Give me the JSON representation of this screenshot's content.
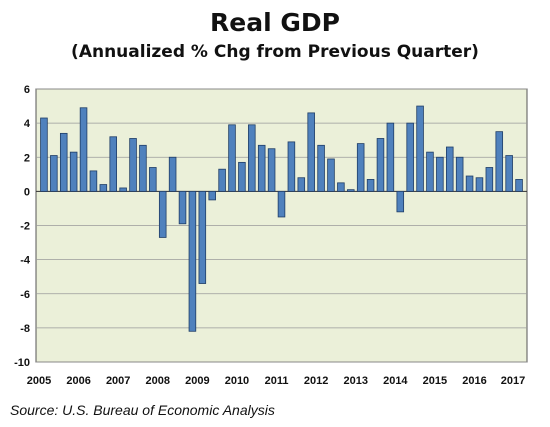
{
  "chart_data": {
    "type": "bar",
    "title": "Real GDP",
    "subtitle": "(Annualized % Chg from Previous Quarter)",
    "source": "Source: U.S. Bureau of Economic Analysis",
    "ylim": [
      -10,
      6
    ],
    "yticks": [
      6,
      4,
      2,
      0,
      -2,
      -4,
      -6,
      -8,
      -10
    ],
    "grid": true,
    "bar_color": "#4f81bd",
    "plot_background": "#ebf0d9",
    "x_ticks": [
      "2005",
      "2006",
      "2007",
      "2008",
      "2009",
      "2010",
      "2011",
      "2012",
      "2013",
      "2014",
      "2015",
      "2016",
      "2017"
    ],
    "categories": [
      "2005 Q1",
      "2005 Q2",
      "2005 Q3",
      "2005 Q4",
      "2006 Q1",
      "2006 Q2",
      "2006 Q3",
      "2006 Q4",
      "2007 Q1",
      "2007 Q2",
      "2007 Q3",
      "2007 Q4",
      "2008 Q1",
      "2008 Q2",
      "2008 Q3",
      "2008 Q4",
      "2009 Q1",
      "2009 Q2",
      "2009 Q3",
      "2009 Q4",
      "2010 Q1",
      "2010 Q2",
      "2010 Q3",
      "2010 Q4",
      "2011 Q1",
      "2011 Q2",
      "2011 Q3",
      "2011 Q4",
      "2012 Q1",
      "2012 Q2",
      "2012 Q3",
      "2012 Q4",
      "2013 Q1",
      "2013 Q2",
      "2013 Q3",
      "2013 Q4",
      "2014 Q1",
      "2014 Q2",
      "2014 Q3",
      "2014 Q4",
      "2015 Q1",
      "2015 Q2",
      "2015 Q3",
      "2015 Q4",
      "2016 Q1",
      "2016 Q2",
      "2016 Q3",
      "2016 Q4",
      "2017 Q1"
    ],
    "values": [
      4.3,
      2.1,
      3.4,
      2.3,
      4.9,
      1.2,
      0.4,
      3.2,
      0.2,
      3.1,
      2.7,
      1.4,
      -2.7,
      2.0,
      -1.9,
      -8.2,
      -5.4,
      -0.5,
      1.3,
      3.9,
      1.7,
      3.9,
      2.7,
      2.5,
      -1.5,
      2.9,
      0.8,
      4.6,
      2.7,
      1.9,
      0.5,
      0.1,
      2.8,
      0.7,
      3.1,
      4.0,
      -1.2,
      4.0,
      5.0,
      2.3,
      2.0,
      2.6,
      2.0,
      0.9,
      0.8,
      1.4,
      3.5,
      2.1,
      0.7
    ]
  }
}
